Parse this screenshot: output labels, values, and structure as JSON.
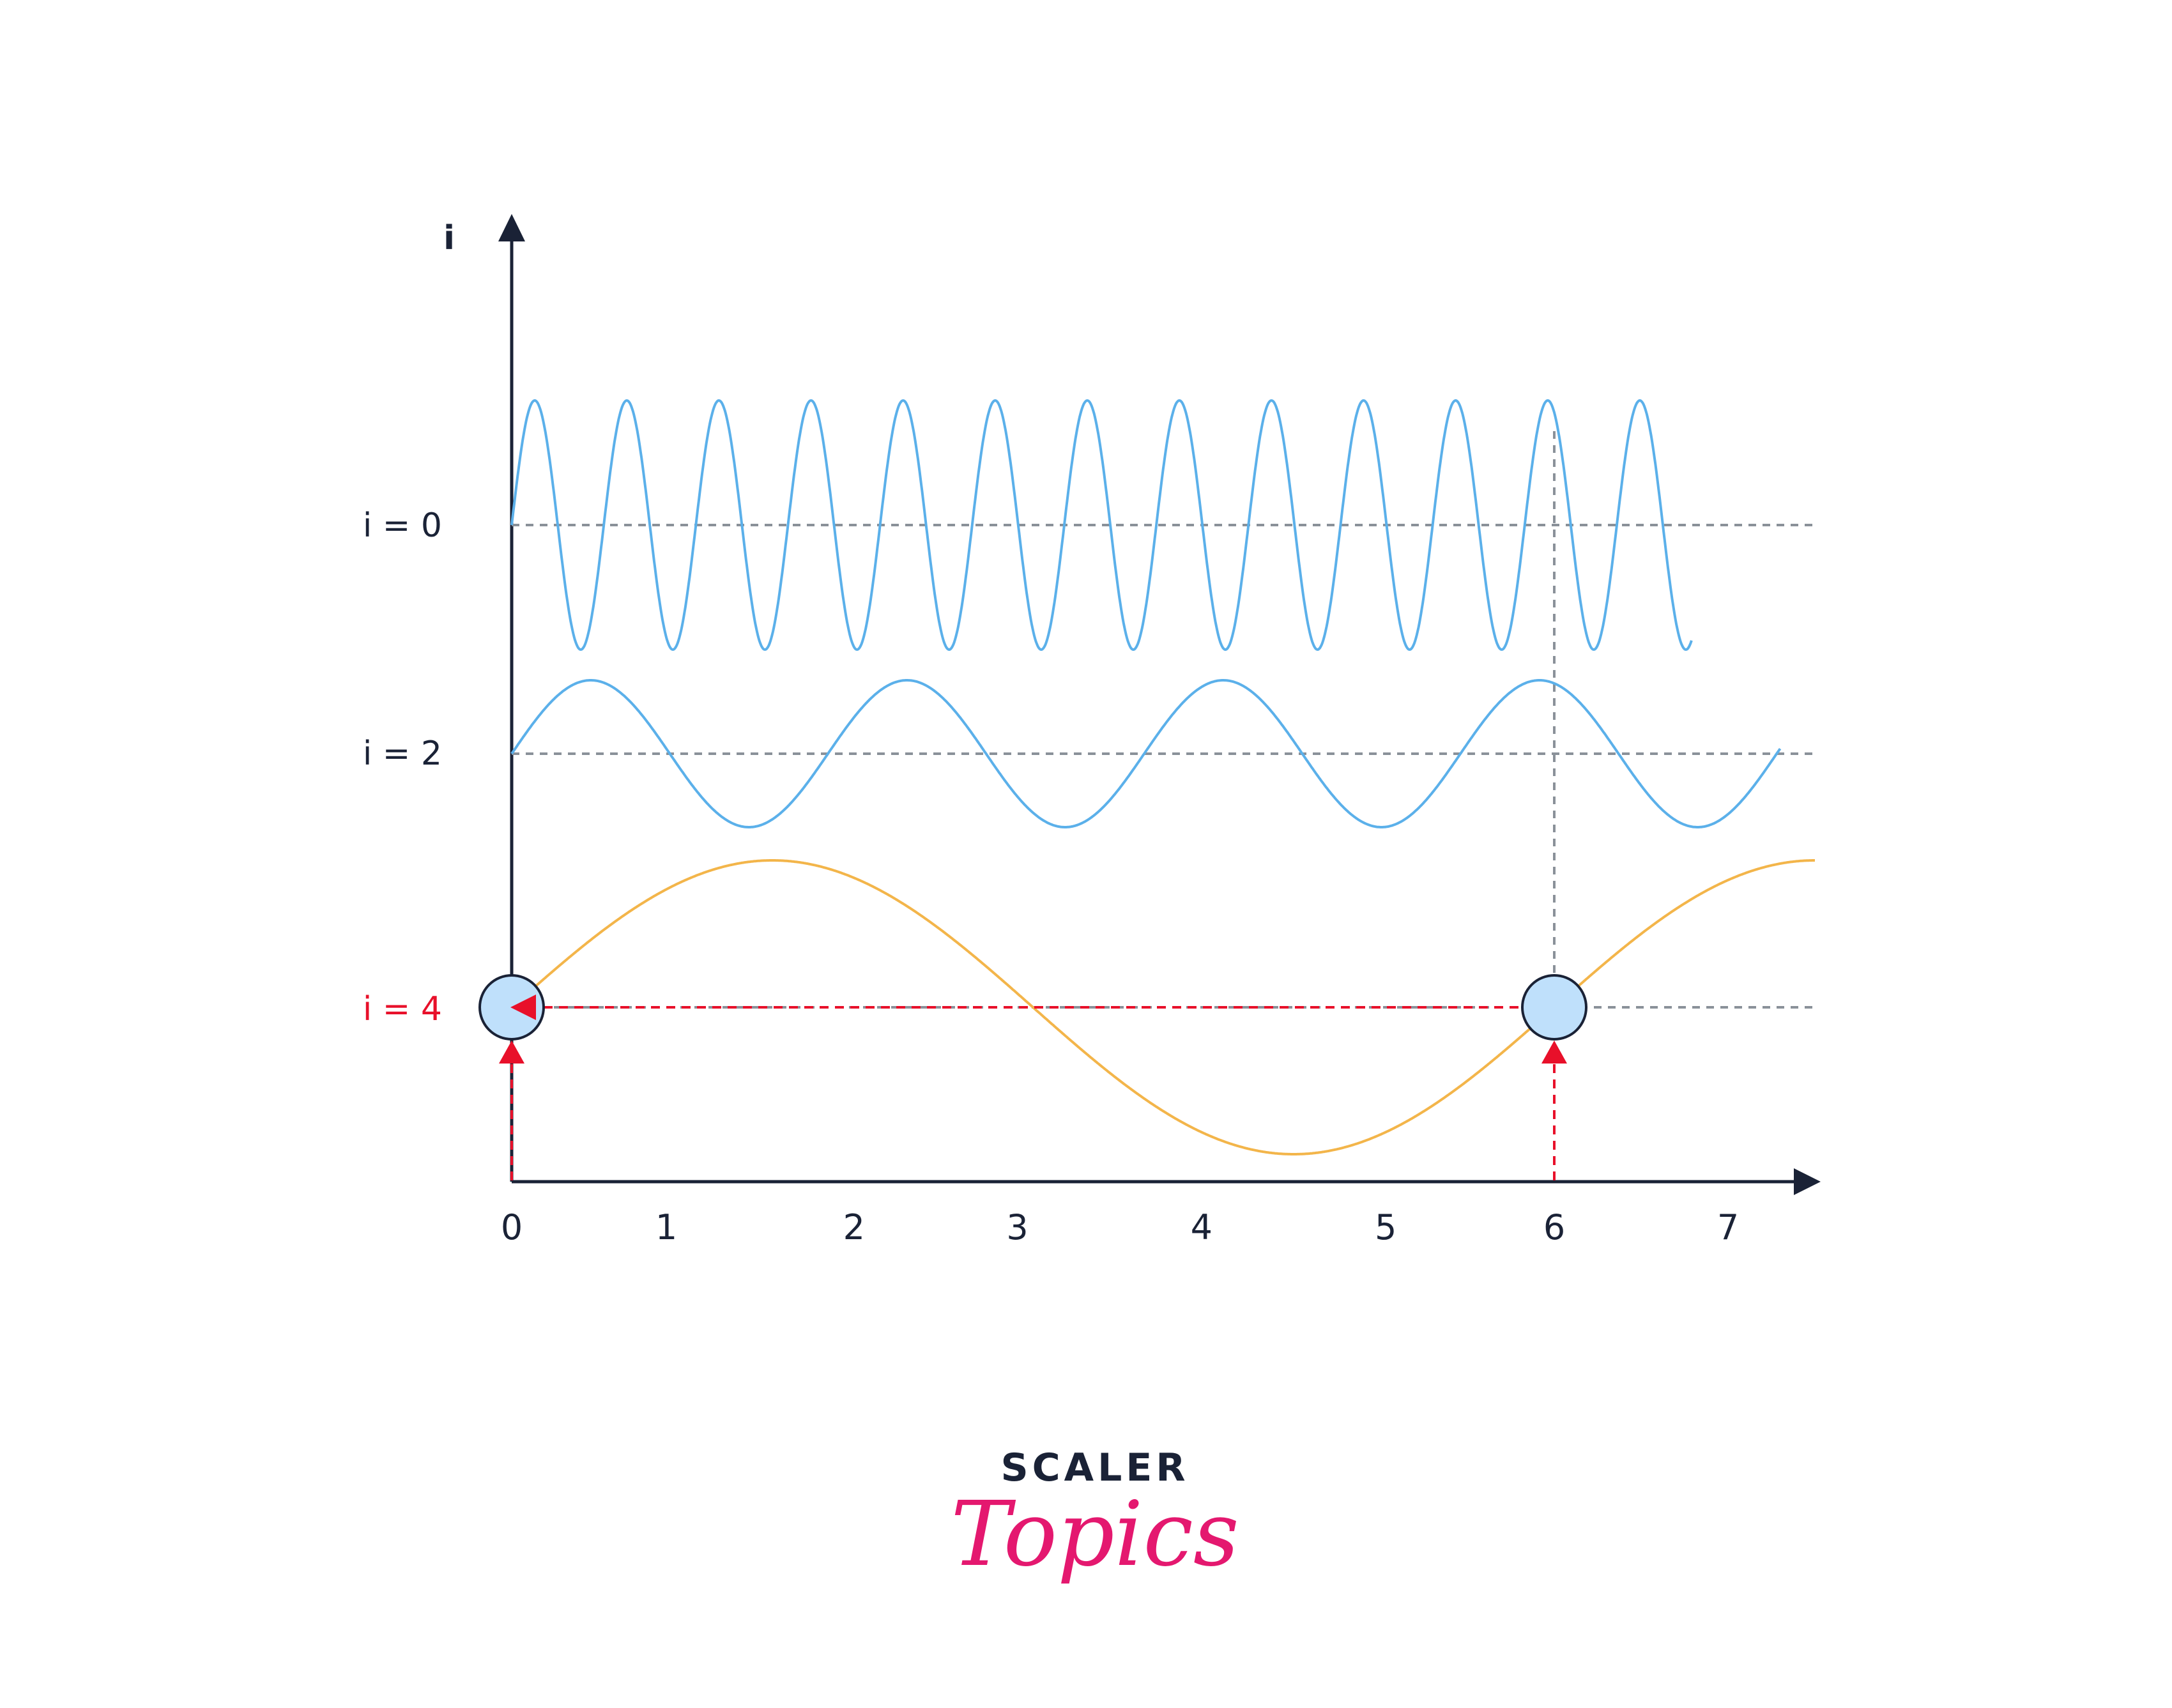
{
  "axes": {
    "y_label": "i",
    "x_ticks": [
      "0",
      "1",
      "2",
      "3",
      "4",
      "5",
      "6",
      "7"
    ]
  },
  "levels": [
    {
      "label": "i = 0",
      "color": "#1a2236"
    },
    {
      "label": "i = 2",
      "color": "#1a2236"
    },
    {
      "label": "i = 4",
      "color": "#e8102a"
    }
  ],
  "curves": [
    {
      "id": "wave-i0",
      "color": "#5bb0ea",
      "x_start": 0,
      "x_end": 6.79,
      "period": 0.53,
      "baseline_level": 0
    },
    {
      "id": "wave-i2",
      "color": "#5bb0ea",
      "x_start": 0,
      "x_end": 7.3,
      "period": 1.82,
      "baseline_level": 1
    },
    {
      "id": "wave-i4",
      "color": "#f3b54a",
      "x_start": 0,
      "x_end": 7.5,
      "period": 6.0,
      "baseline_level": 2
    }
  ],
  "markers": {
    "sample_points": [
      0,
      6
    ],
    "fill_color": "#bfe0fb",
    "arrow_color": "#e8102a",
    "guide_color": "#8a9199"
  },
  "logo": {
    "top": "SCALER",
    "bottom": "Topics",
    "top_color": "#1a2236",
    "bottom_color": "#e4186f"
  }
}
